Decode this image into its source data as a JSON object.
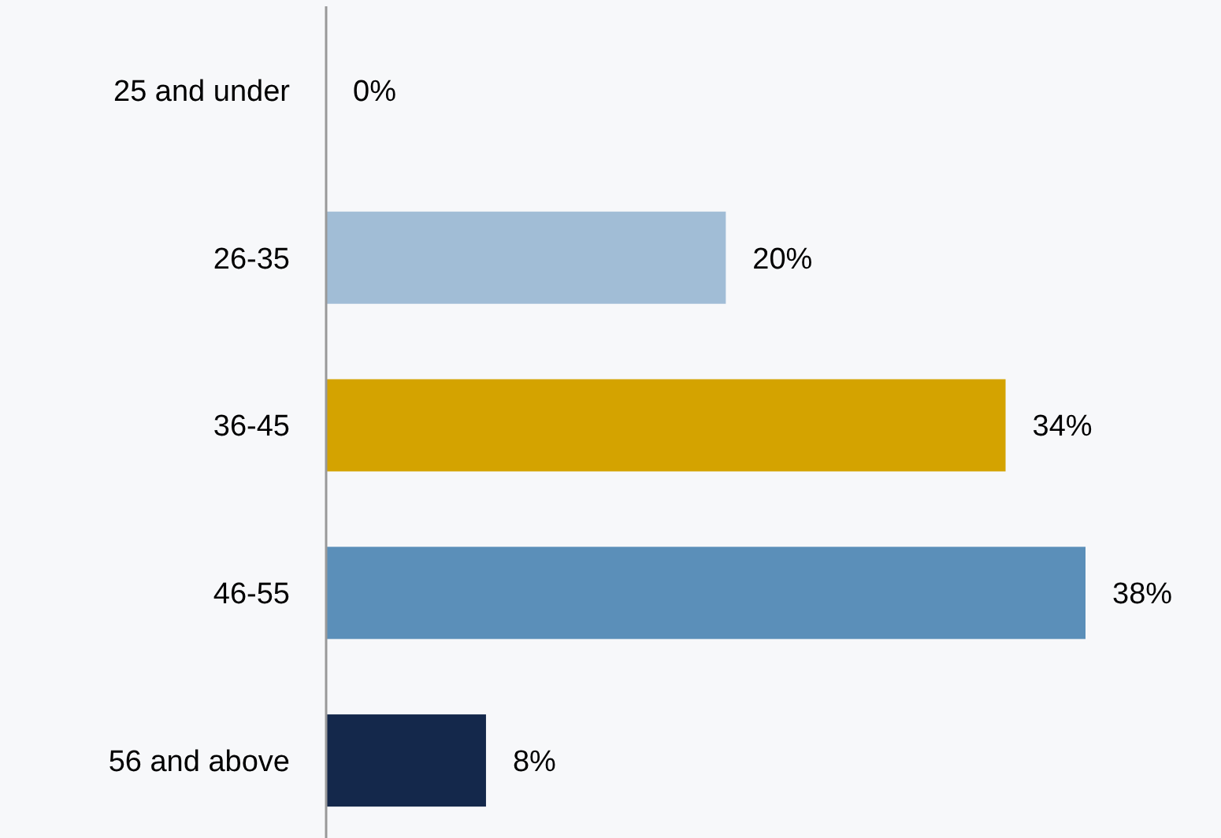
{
  "chart_data": {
    "type": "bar",
    "orientation": "horizontal",
    "categories": [
      "25 and under",
      "26-35",
      "36-45",
      "46-55",
      "56 and above"
    ],
    "values": [
      0,
      20,
      34,
      38,
      8
    ],
    "colors": [
      "#a1bdd6",
      "#a1bdd6",
      "#d4a300",
      "#5b8fb9",
      "#14284b"
    ],
    "value_labels": [
      "0%",
      "20%",
      "34%",
      "38%",
      "8%"
    ]
  }
}
